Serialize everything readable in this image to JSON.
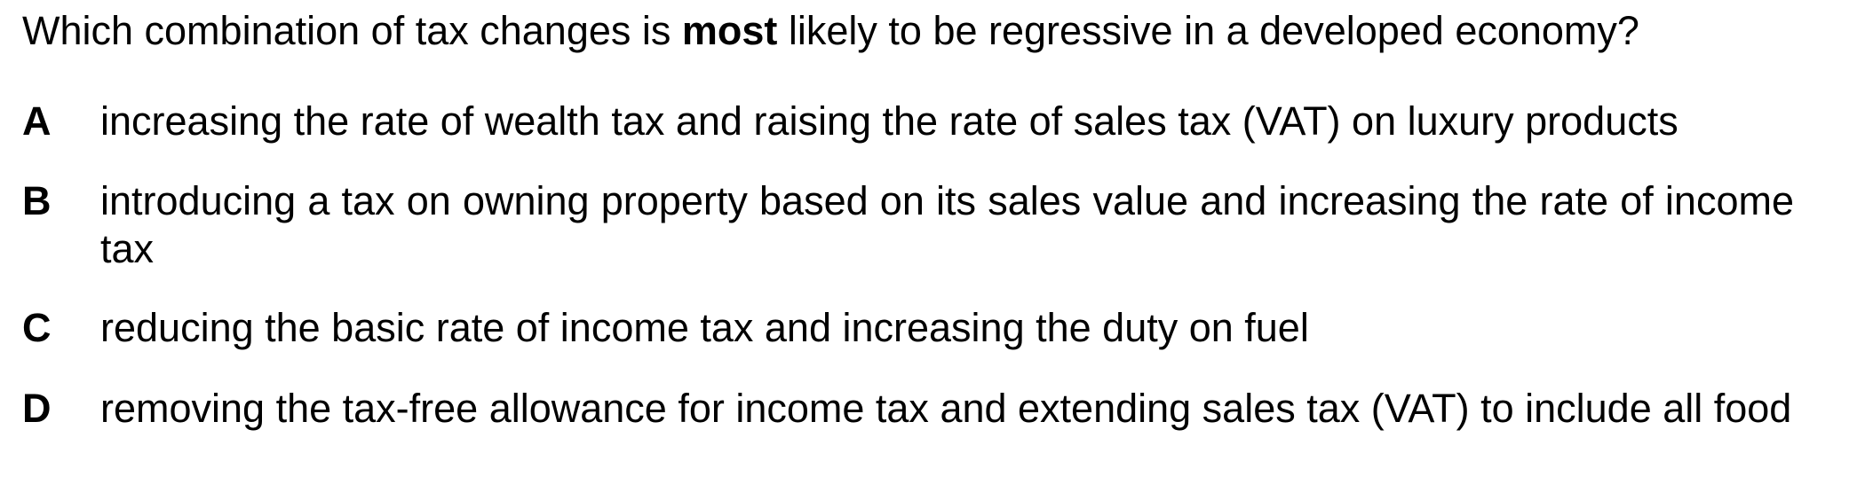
{
  "question": {
    "before": "Which combination of tax changes is ",
    "emphasis": "most",
    "after": " likely to be regressive in a developed economy?"
  },
  "options": [
    {
      "letter": "A",
      "text": "increasing the rate of wealth tax and raising the rate of sales tax (VAT) on luxury products"
    },
    {
      "letter": "B",
      "text": "introducing a tax on owning property based on its sales value and increasing the rate of income tax"
    },
    {
      "letter": "C",
      "text": "reducing the basic rate of income tax and increasing the duty on fuel"
    },
    {
      "letter": "D",
      "text": "removing the tax-free allowance for income tax and extending sales tax (VAT) to include all food"
    }
  ]
}
